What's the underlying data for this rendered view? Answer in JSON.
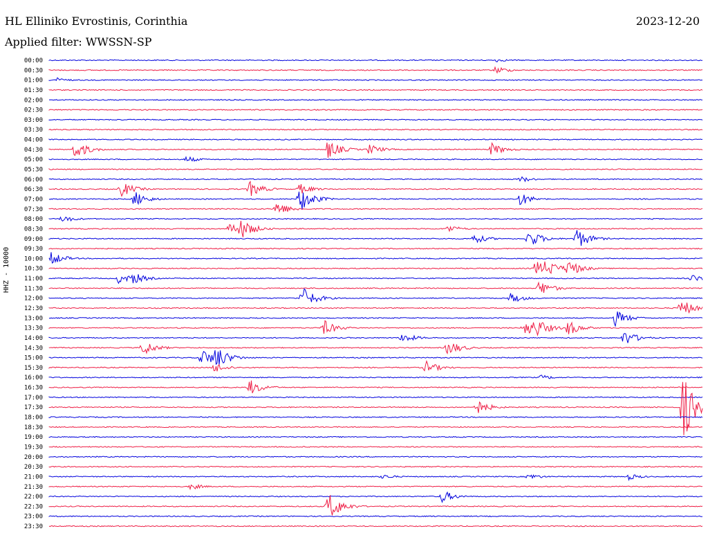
{
  "header": {
    "station": "HL Elliniko Evrostinis, Corinthia",
    "filter": "Applied filter: WWSSN-SP",
    "date": "2023-12-20",
    "channel": "HHZ - 10000"
  },
  "colors": {
    "blue": "#0000dd",
    "red": "#ee1c44"
  },
  "chart_data": {
    "type": "line",
    "title": "HL Elliniko Evrostinis, Corinthia",
    "subtitle": "Applied filter: WWSSN-SP",
    "ylabel": "HHZ - 10000",
    "trace_minutes": 30,
    "series_colors": [
      "#0000dd",
      "#ee1c44"
    ],
    "rows": [
      "00:00",
      "00:30",
      "01:00",
      "01:30",
      "02:00",
      "02:30",
      "03:00",
      "03:30",
      "04:00",
      "04:30",
      "05:00",
      "05:30",
      "06:00",
      "06:30",
      "07:00",
      "07:30",
      "08:00",
      "08:30",
      "09:00",
      "09:30",
      "10:00",
      "10:30",
      "11:00",
      "11:30",
      "12:00",
      "12:30",
      "13:00",
      "13:30",
      "14:00",
      "14:30",
      "15:00",
      "15:30",
      "16:00",
      "16:30",
      "17:00",
      "17:30",
      "18:00",
      "18:30",
      "19:00",
      "19:30",
      "20:00",
      "20:30",
      "21:00",
      "21:30",
      "22:00",
      "22:30",
      "23:00",
      "23:30"
    ],
    "events": [
      {
        "row": "00:00",
        "minute": 20.5,
        "amplitude": 3
      },
      {
        "row": "00:30",
        "minute": 20.5,
        "amplitude": 6
      },
      {
        "row": "01:00",
        "minute": 0.3,
        "amplitude": 4
      },
      {
        "row": "04:30",
        "minute": 1.2,
        "amplitude": 14
      },
      {
        "row": "04:30",
        "minute": 12.8,
        "amplitude": 14
      },
      {
        "row": "04:30",
        "minute": 14.7,
        "amplitude": 8
      },
      {
        "row": "04:30",
        "minute": 20.3,
        "amplitude": 10
      },
      {
        "row": "05:00",
        "minute": 6.3,
        "amplitude": 5
      },
      {
        "row": "06:00",
        "minute": 21.6,
        "amplitude": 5
      },
      {
        "row": "06:30",
        "minute": 3.3,
        "amplitude": 12
      },
      {
        "row": "06:30",
        "minute": 9.2,
        "amplitude": 12
      },
      {
        "row": "06:30",
        "minute": 11.5,
        "amplitude": 8
      },
      {
        "row": "07:00",
        "minute": 3.9,
        "amplitude": 12
      },
      {
        "row": "07:00",
        "minute": 11.5,
        "amplitude": 20
      },
      {
        "row": "07:00",
        "minute": 21.6,
        "amplitude": 10
      },
      {
        "row": "07:30",
        "minute": 10.4,
        "amplitude": 12
      },
      {
        "row": "08:00",
        "minute": 0.6,
        "amplitude": 6
      },
      {
        "row": "08:30",
        "minute": 8.3,
        "amplitude": 12
      },
      {
        "row": "08:30",
        "minute": 8.8,
        "amplitude": 16
      },
      {
        "row": "08:30",
        "minute": 18.3,
        "amplitude": 6
      },
      {
        "row": "09:00",
        "minute": 19.5,
        "amplitude": 8
      },
      {
        "row": "09:00",
        "minute": 22.0,
        "amplitude": 14
      },
      {
        "row": "09:00",
        "minute": 24.2,
        "amplitude": 16
      },
      {
        "row": "10:00",
        "minute": 0.1,
        "amplitude": 10
      },
      {
        "row": "10:30",
        "minute": 22.3,
        "amplitude": 12
      },
      {
        "row": "10:30",
        "minute": 22.8,
        "amplitude": 14
      },
      {
        "row": "10:30",
        "minute": 23.8,
        "amplitude": 14
      },
      {
        "row": "11:00",
        "minute": 3.2,
        "amplitude": 8
      },
      {
        "row": "11:00",
        "minute": 3.8,
        "amplitude": 10
      },
      {
        "row": "11:00",
        "minute": 29.5,
        "amplitude": 6
      },
      {
        "row": "11:30",
        "minute": 22.5,
        "amplitude": 12
      },
      {
        "row": "12:00",
        "minute": 11.6,
        "amplitude": 18
      },
      {
        "row": "12:00",
        "minute": 21.2,
        "amplitude": 8
      },
      {
        "row": "12:30",
        "minute": 29.0,
        "amplitude": 14
      },
      {
        "row": "13:00",
        "minute": 26.0,
        "amplitude": 12
      },
      {
        "row": "13:30",
        "minute": 12.6,
        "amplitude": 12
      },
      {
        "row": "13:30",
        "minute": 21.8,
        "amplitude": 14
      },
      {
        "row": "13:30",
        "minute": 22.3,
        "amplitude": 16
      },
      {
        "row": "13:30",
        "minute": 23.8,
        "amplitude": 12
      },
      {
        "row": "14:00",
        "minute": 16.2,
        "amplitude": 8
      },
      {
        "row": "14:00",
        "minute": 26.4,
        "amplitude": 12
      },
      {
        "row": "14:30",
        "minute": 4.3,
        "amplitude": 12
      },
      {
        "row": "14:30",
        "minute": 18.3,
        "amplitude": 12
      },
      {
        "row": "15:00",
        "minute": 7.0,
        "amplitude": 14
      },
      {
        "row": "15:00",
        "minute": 7.6,
        "amplitude": 20
      },
      {
        "row": "15:30",
        "minute": 7.6,
        "amplitude": 8
      },
      {
        "row": "15:30",
        "minute": 17.3,
        "amplitude": 10
      },
      {
        "row": "16:00",
        "minute": 22.6,
        "amplitude": 4
      },
      {
        "row": "16:30",
        "minute": 9.2,
        "amplitude": 12
      },
      {
        "row": "17:30",
        "minute": 19.6,
        "amplitude": 12
      },
      {
        "row": "17:30",
        "minute": 29.1,
        "amplitude": 50
      },
      {
        "row": "21:00",
        "minute": 15.3,
        "amplitude": 4
      },
      {
        "row": "21:00",
        "minute": 22.0,
        "amplitude": 5
      },
      {
        "row": "21:00",
        "minute": 26.6,
        "amplitude": 5
      },
      {
        "row": "21:30",
        "minute": 6.5,
        "amplitude": 5
      },
      {
        "row": "22:00",
        "minute": 18.0,
        "amplitude": 10
      },
      {
        "row": "22:30",
        "minute": 12.8,
        "amplitude": 22
      }
    ]
  }
}
